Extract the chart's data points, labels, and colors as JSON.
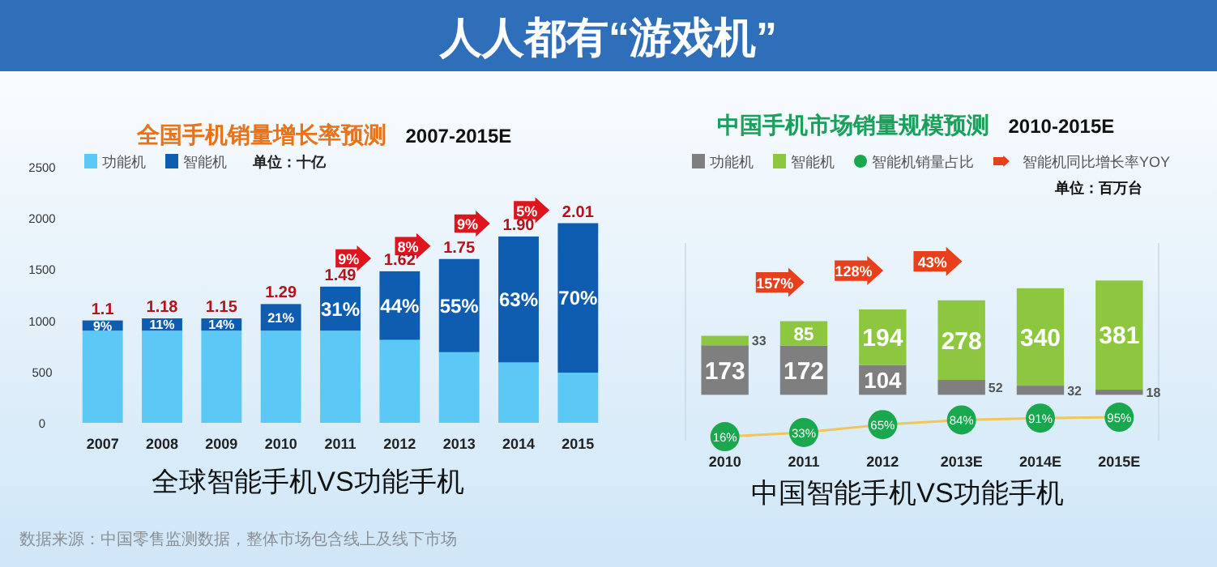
{
  "chart_data": [
    {
      "type": "other",
      "title": "人人都有“游戏机”",
      "annotations": [
        "数据来源：中国零售监测数据，整体市场包含线上及线下市场"
      ]
    },
    {
      "type": "bar",
      "title": "全国手机销量增长率预测 2007-2015E",
      "xlabel": "全球智能手机VS功能手机",
      "categories": [
        "2007",
        "2008",
        "2009",
        "2010",
        "2011",
        "2012",
        "2013",
        "2014",
        "2015"
      ],
      "stacked": true,
      "series": [
        {
          "name": "功能机",
          "color": "#5bc8f5",
          "values": [
            900,
            900,
            900,
            900,
            900,
            810,
            690,
            590,
            490
          ]
        },
        {
          "name": "智能机",
          "color": "#0f5db0",
          "values": [
            100,
            120,
            120,
            260,
            430,
            670,
            910,
            1230,
            1460
          ]
        }
      ],
      "ylim": [
        0,
        2500
      ],
      "yticks": [
        0,
        500,
        1000,
        1500,
        2000,
        2500
      ],
      "legend": "top left",
      "annotations": [
        "单位：十亿",
        "9%",
        "11%",
        "14%",
        "21%",
        "31%",
        "44%",
        "55%",
        "63%",
        "70%",
        {
          "text": "1.1",
          "x": "2007",
          "y": 1000
        },
        {
          "text": "1.18",
          "x": "2008",
          "y": 1020
        },
        {
          "text": "1.15",
          "x": "2009",
          "y": 1020
        },
        {
          "text": "1.29",
          "x": "2010",
          "y": 1160
        },
        {
          "text": "1.49",
          "x": "2011",
          "y": 1330
        },
        {
          "text": "1.62",
          "x": "2012",
          "y": 1480
        },
        {
          "text": "1.75",
          "x": "2013",
          "y": 1600
        },
        {
          "text": "1.90",
          "x": "2014",
          "y": 1820
        },
        {
          "text": "2.01",
          "x": "2015",
          "y": 1950
        },
        "9%",
        "8%",
        "9%",
        "5%"
      ]
    },
    {
      "type": "bar",
      "title": "中国手机市场销量规模预测 2010-2015E",
      "xlabel": "中国智能手机VS功能手机",
      "categories": [
        "2010",
        "2011",
        "2012",
        "2013E",
        "2014E",
        "2015E"
      ],
      "stacked": true,
      "data_labels": true,
      "series": [
        {
          "name": "功能机",
          "color": "#7f7f7f",
          "values": [
            173,
            172,
            104,
            52,
            32,
            18
          ]
        },
        {
          "name": "智能机",
          "color": "#8dc63f",
          "values": [
            33,
            85,
            194,
            278,
            340,
            381
          ]
        },
        {
          "name": "智能机销量占比",
          "type": "line",
          "axis": "y2",
          "color": "#1aa84f",
          "values": [
            16,
            33,
            65,
            84,
            91,
            95
          ],
          "value_labels": [
            "16%",
            "33%",
            "65%",
            "84%",
            "91%",
            "95%"
          ],
          "marker": "circle"
        }
      ],
      "ylim": [
        -160,
        530
      ],
      "y2lim": [
        0,
        800
      ],
      "tick_labels": "x",
      "legend": "top left",
      "annotations": [
        "智能机同比增长率YOY",
        "单位：百万台",
        "157%",
        "128%",
        "43%"
      ]
    }
  ]
}
